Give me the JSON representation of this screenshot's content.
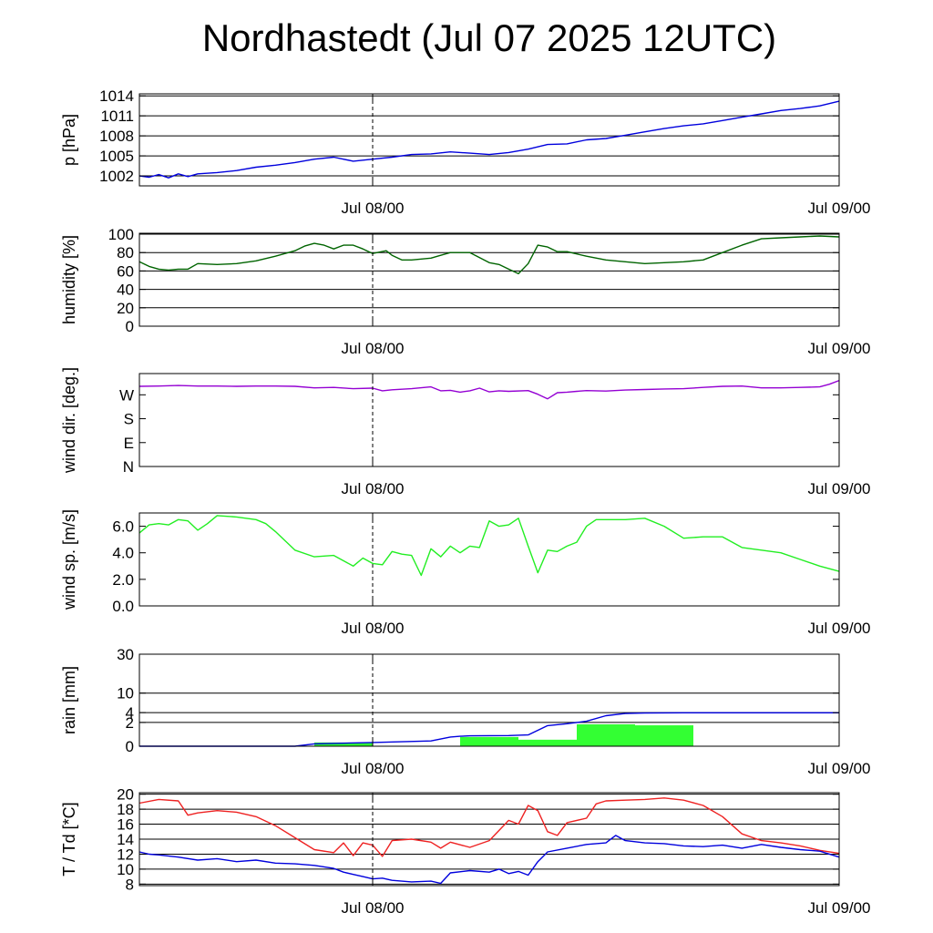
{
  "title": "Nordhastedt (Jul 07 2025 12UTC)",
  "chart_data": [
    {
      "type": "line",
      "ylabel": "p [hPa]",
      "yticks": [
        1002,
        1005,
        1008,
        1011,
        1014
      ],
      "ylim": [
        1000.5,
        1014.3
      ],
      "xlim": [
        0,
        36
      ],
      "xticks": [
        {
          "x": 12,
          "label": "Jul 08/00"
        },
        {
          "x": 36,
          "label": "Jul 09/00"
        }
      ],
      "grid": true,
      "series": [
        {
          "color": "#0000dd",
          "x": [
            0,
            0.5,
            1,
            1.5,
            2,
            2.5,
            3,
            4,
            5,
            6,
            7,
            8,
            9,
            10,
            11,
            12,
            13,
            14,
            15,
            16,
            17,
            18,
            19,
            20,
            21,
            22,
            23,
            24,
            25,
            26,
            27,
            28,
            29,
            30,
            31,
            32,
            33,
            34,
            35,
            36
          ],
          "y": [
            1002.0,
            1001.8,
            1002.2,
            1001.7,
            1002.3,
            1001.9,
            1002.3,
            1002.5,
            1002.8,
            1003.3,
            1003.6,
            1004.0,
            1004.5,
            1004.8,
            1004.2,
            1004.5,
            1004.8,
            1005.2,
            1005.3,
            1005.6,
            1005.4,
            1005.2,
            1005.5,
            1006.0,
            1006.7,
            1006.8,
            1007.4,
            1007.6,
            1008.1,
            1008.6,
            1009.1,
            1009.5,
            1009.8,
            1010.3,
            1010.8,
            1011.3,
            1011.8,
            1012.1,
            1012.5,
            1013.2
          ]
        }
      ]
    },
    {
      "type": "line",
      "ylabel": "humidity [%]",
      "yticks": [
        0,
        20,
        40,
        60,
        80,
        100
      ],
      "ylim": [
        0,
        101
      ],
      "xlim": [
        0,
        36
      ],
      "xticks": [
        {
          "x": 12,
          "label": "Jul 08/00"
        },
        {
          "x": 36,
          "label": "Jul 09/00"
        }
      ],
      "grid": true,
      "series": [
        {
          "color": "#006400",
          "x": [
            0,
            0.5,
            1,
            1.5,
            2,
            2.5,
            3,
            4,
            5,
            6,
            7,
            8,
            8.5,
            9,
            9.5,
            10,
            10.5,
            11,
            11.5,
            12,
            12.7,
            13,
            13.5,
            14,
            15,
            15.5,
            16,
            16.5,
            17,
            18,
            18.5,
            19,
            19.5,
            20,
            20.5,
            21,
            21.5,
            22,
            23,
            24,
            25,
            26,
            27,
            28,
            29,
            30,
            31,
            32,
            33,
            34,
            35,
            36
          ],
          "y": [
            70,
            65,
            62,
            61,
            62,
            62,
            68,
            67,
            68,
            71,
            76,
            82,
            87,
            90,
            88,
            84,
            88,
            88,
            84,
            79,
            82,
            77,
            72,
            72,
            74,
            77,
            80,
            80,
            80,
            69,
            67,
            62,
            57,
            68,
            88,
            86,
            81,
            81,
            76,
            72,
            70,
            68,
            69,
            70,
            72,
            80,
            88,
            95,
            96,
            97,
            98,
            97
          ]
        }
      ]
    },
    {
      "type": "line",
      "ylabel": "wind dir. [deg.]",
      "yticks": [
        0,
        90,
        180,
        270
      ],
      "yticklabels": [
        "N",
        "E",
        "S",
        "W"
      ],
      "ylim": [
        0,
        350
      ],
      "xlim": [
        0,
        36
      ],
      "xticks": [
        {
          "x": 12,
          "label": "Jul 08/00"
        },
        {
          "x": 36,
          "label": "Jul 09/00"
        }
      ],
      "grid": false,
      "series": [
        {
          "color": "#9400d3",
          "x": [
            0,
            1,
            2,
            3,
            4,
            5,
            6,
            7,
            8,
            9,
            10,
            11,
            12,
            12.5,
            13,
            14,
            15,
            15.5,
            16,
            16.5,
            17,
            17.5,
            18,
            18.5,
            19,
            20,
            20.5,
            21,
            21.5,
            22,
            22.5,
            23,
            24,
            25,
            26,
            27,
            28,
            29,
            30,
            31,
            32,
            33,
            34,
            35,
            35.5,
            36
          ],
          "y": [
            302,
            303,
            305,
            303,
            303,
            302,
            303,
            303,
            302,
            296,
            298,
            293,
            295,
            285,
            289,
            293,
            300,
            285,
            287,
            280,
            285,
            295,
            281,
            285,
            283,
            286,
            272,
            255,
            278,
            280,
            283,
            286,
            284,
            288,
            290,
            292,
            293,
            298,
            302,
            303,
            296,
            296,
            298,
            300,
            310,
            324
          ]
        }
      ]
    },
    {
      "type": "line",
      "ylabel": "wind sp. [m/s]",
      "yticks": [
        0,
        2,
        4,
        6
      ],
      "yticklabels": [
        "0.0",
        "2.0",
        "4.0",
        "6.0"
      ],
      "ylim": [
        0,
        7
      ],
      "xlim": [
        0,
        36
      ],
      "xticks": [
        {
          "x": 12,
          "label": "Jul 08/00"
        },
        {
          "x": 36,
          "label": "Jul 09/00"
        }
      ],
      "grid": false,
      "series": [
        {
          "color": "#22ee22",
          "x": [
            0,
            0.5,
            1,
            1.5,
            2,
            2.5,
            3,
            3.5,
            4,
            5,
            6,
            6.5,
            7,
            8,
            9,
            10,
            11,
            11.5,
            12,
            12.5,
            13,
            13.5,
            14,
            14.5,
            15,
            15.5,
            16,
            16.5,
            17,
            17.5,
            18,
            18.5,
            19,
            19.5,
            20,
            20.5,
            21,
            21.5,
            22,
            22.5,
            23,
            23.5,
            24,
            25,
            26,
            27,
            28,
            29,
            30,
            31,
            32,
            33,
            34,
            35,
            36
          ],
          "y": [
            5.5,
            6.1,
            6.2,
            6.1,
            6.5,
            6.4,
            5.7,
            6.2,
            6.8,
            6.7,
            6.5,
            6.2,
            5.6,
            4.2,
            3.7,
            3.8,
            3.0,
            3.6,
            3.2,
            3.1,
            4.1,
            3.9,
            3.8,
            2.3,
            4.3,
            3.7,
            4.5,
            4.0,
            4.5,
            4.4,
            6.4,
            6.0,
            6.1,
            6.6,
            4.5,
            2.5,
            4.2,
            4.1,
            4.5,
            4.8,
            6.0,
            6.5,
            6.5,
            6.5,
            6.6,
            6.0,
            5.1,
            5.2,
            5.2,
            4.4,
            4.2,
            4.0,
            3.5,
            3.0,
            2.6
          ]
        }
      ]
    },
    {
      "type": "bar",
      "ylabel": "rain [mm]",
      "yticks": [
        0,
        2,
        4,
        10,
        30
      ],
      "yticklabels": [
        "0",
        "2",
        "4",
        "10",
        "30"
      ],
      "ylim": [
        0,
        30
      ],
      "yscale": "sqrt",
      "xlim": [
        0,
        36
      ],
      "xticks": [
        {
          "x": 12,
          "label": "Jul 08/00"
        },
        {
          "x": 36,
          "label": "Jul 09/00"
        }
      ],
      "grid": true,
      "bars": {
        "color": "#33ff33",
        "x0": [
          9,
          16.5,
          19.5,
          22.5,
          25.5
        ],
        "x1": [
          12,
          19.5,
          22.5,
          25.5,
          28.5
        ],
        "values": [
          0.05,
          0.3,
          0.15,
          1.7,
          1.55
        ]
      },
      "series": [
        {
          "color": "#0000dd",
          "x": [
            0,
            8,
            9,
            12,
            15,
            16,
            16.5,
            17,
            19,
            20,
            21,
            22,
            22.5,
            23,
            24,
            25,
            26,
            27,
            28,
            30,
            32,
            36
          ],
          "y": [
            0,
            0,
            0.02,
            0.05,
            0.1,
            0.3,
            0.35,
            0.38,
            0.4,
            0.45,
            1.5,
            1.8,
            2.0,
            2.2,
            3.3,
            3.8,
            3.9,
            3.95,
            3.97,
            3.97,
            3.97,
            3.97
          ]
        }
      ]
    },
    {
      "type": "line",
      "ylabel": "T / Td [*C]",
      "yticks": [
        8,
        10,
        12,
        14,
        16,
        18,
        20
      ],
      "ylim": [
        7.8,
        20.2
      ],
      "xlim": [
        0,
        36
      ],
      "xticks": [
        {
          "x": 12,
          "label": "Jul 08/00"
        },
        {
          "x": 36,
          "label": "Jul 09/00"
        }
      ],
      "grid": true,
      "series": [
        {
          "color": "#ee2222",
          "x": [
            0,
            1,
            2,
            2.5,
            3,
            4,
            5,
            6,
            7,
            8,
            9,
            10,
            10.5,
            11,
            11.5,
            12,
            12.5,
            13,
            14,
            15,
            15.5,
            16,
            17,
            18,
            19,
            19.5,
            20,
            20.5,
            21,
            21.5,
            22,
            23,
            23.5,
            24,
            25,
            26,
            27,
            28,
            29,
            30,
            31,
            32,
            33,
            34,
            35,
            36
          ],
          "y": [
            18.8,
            19.3,
            19.1,
            17.2,
            17.5,
            17.8,
            17.6,
            17.0,
            15.8,
            14.2,
            12.6,
            12.2,
            13.5,
            11.8,
            13.5,
            13.2,
            11.7,
            13.8,
            14.0,
            13.6,
            12.8,
            13.6,
            12.9,
            13.8,
            16.5,
            16.0,
            18.5,
            17.8,
            15.0,
            14.5,
            16.2,
            16.8,
            18.7,
            19.1,
            19.2,
            19.3,
            19.5,
            19.2,
            18.5,
            17.0,
            14.7,
            13.8,
            13.5,
            13.1,
            12.5,
            12.1
          ]
        },
        {
          "color": "#0000dd",
          "x": [
            0,
            0.5,
            1,
            2,
            3,
            4,
            5,
            6,
            7,
            8,
            9,
            10,
            10.5,
            11,
            11.5,
            12,
            12.5,
            13,
            14,
            15,
            15.5,
            16,
            17,
            18,
            18.5,
            19,
            19.5,
            20,
            20.5,
            21,
            22,
            23,
            24,
            24.5,
            25,
            26,
            27,
            28,
            29,
            30,
            31,
            32,
            33,
            34,
            35,
            36
          ],
          "y": [
            12.3,
            12.0,
            11.9,
            11.6,
            11.2,
            11.4,
            11.0,
            11.2,
            10.8,
            10.7,
            10.5,
            10.1,
            9.6,
            9.3,
            9.0,
            8.7,
            8.8,
            8.5,
            8.3,
            8.4,
            8.1,
            9.5,
            9.8,
            9.6,
            10.0,
            9.4,
            9.7,
            9.2,
            11.0,
            12.3,
            12.8,
            13.3,
            13.5,
            14.5,
            13.8,
            13.5,
            13.4,
            13.1,
            13.0,
            13.2,
            12.8,
            13.3,
            12.9,
            12.6,
            12.4,
            11.6
          ]
        }
      ]
    }
  ]
}
